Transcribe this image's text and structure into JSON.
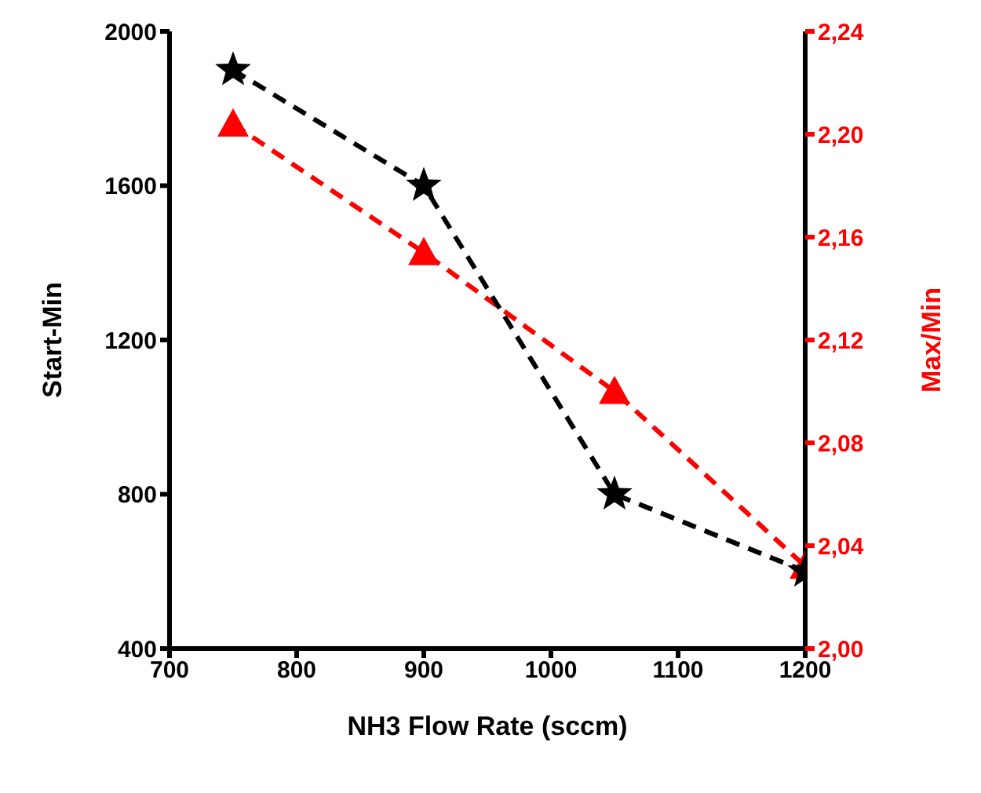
{
  "chart_data": {
    "type": "line",
    "xlabel": "NH3 Flow Rate (sccm)",
    "ylabel": "Start-Min",
    "y2label": "Max/Min",
    "x": [
      750,
      900,
      1050,
      1200
    ],
    "series": [
      {
        "color": "#000000",
        "values": [
          1900,
          1600,
          800,
          600
        ],
        "marker": "star",
        "line_style": "dashed"
      },
      {
        "color": "#ff0000",
        "values": [
          2.204,
          2.154,
          2.1,
          2.032
        ],
        "marker": "triangle",
        "line_style": "dashed",
        "axis": "y2"
      }
    ],
    "xlim": [
      700,
      1200
    ],
    "xticks": [
      700,
      800,
      900,
      1000,
      1100,
      1200
    ],
    "ylim": [
      400,
      2000
    ],
    "yticks": [
      400,
      800,
      1200,
      1600,
      2000
    ],
    "y2lim": [
      2.0,
      2.24
    ],
    "y2ticks": [
      {
        "value": 2.0,
        "label": "2,00"
      },
      {
        "value": 2.04,
        "label": "2,04"
      },
      {
        "value": 2.08,
        "label": "2,08"
      },
      {
        "value": 2.12,
        "label": "2,12"
      },
      {
        "value": 2.16,
        "label": "2,16"
      },
      {
        "value": 2.2,
        "label": "2,20"
      },
      {
        "value": 2.24,
        "label": "2,24"
      }
    ],
    "grid": false,
    "legend": false
  }
}
